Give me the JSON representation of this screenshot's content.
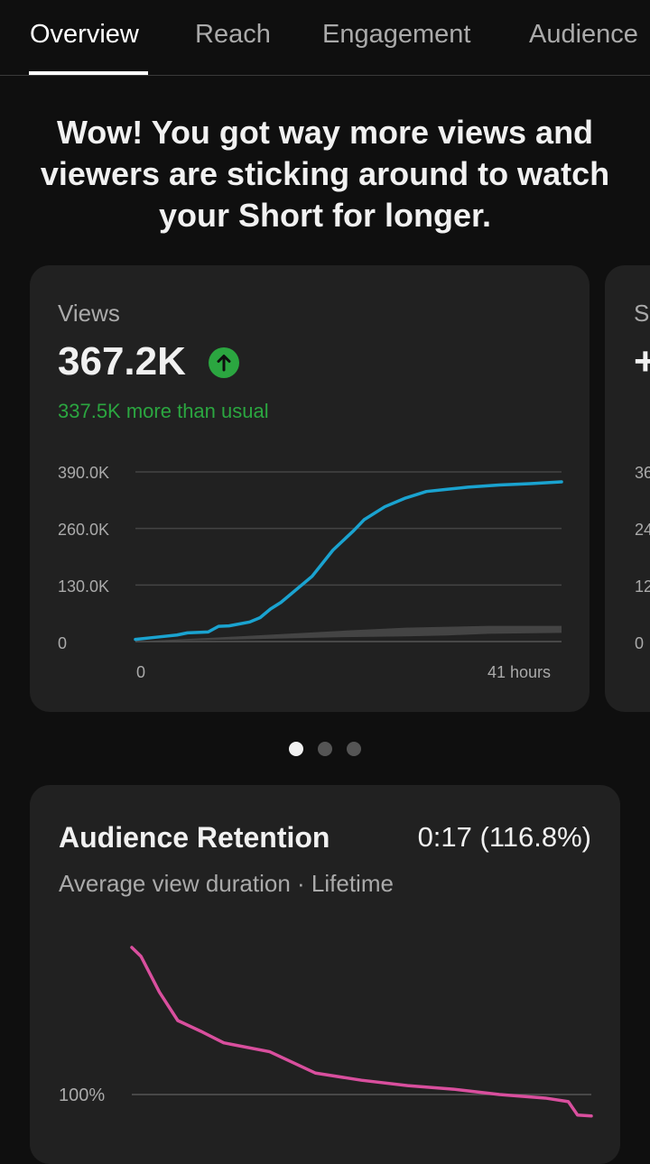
{
  "tabs": [
    {
      "label": "Overview",
      "active": true
    },
    {
      "label": "Reach",
      "active": false
    },
    {
      "label": "Engagement",
      "active": false
    },
    {
      "label": "Audience",
      "active": false
    }
  ],
  "headline": "Wow! You got way more views and viewers are sticking around to watch your Short for longer.",
  "views_card": {
    "label": "Views",
    "value": "367.2K",
    "delta_text": "337.5K more than usual",
    "up_icon": "arrow-up-icon",
    "accent_color": "#2ba640",
    "line_color": "#1aa3d0",
    "typical_range_color": "#444444"
  },
  "next_card_peek": {
    "label": "S",
    "value": "+",
    "ticks": [
      "36",
      "24",
      "12",
      "0"
    ]
  },
  "pager": {
    "count": 3,
    "active_index": 0
  },
  "retention": {
    "title": "Audience Retention",
    "value": "0:17 (116.8%)",
    "subtitle": "Average view duration · Lifetime",
    "line_color": "#d94f9e",
    "ref_label": "100%"
  },
  "chart_data": [
    {
      "type": "line",
      "title": "",
      "xlabel": "",
      "ylabel": "",
      "x_tick_labels": [
        "0",
        "41 hours"
      ],
      "y_tick_labels": [
        "390.0K",
        "260.0K",
        "130.0K",
        "0"
      ],
      "ylim": [
        0,
        390000
      ],
      "xlim": [
        0,
        41
      ],
      "grid": true,
      "series": [
        {
          "name": "",
          "x": [
            0,
            2,
            4,
            5,
            7,
            8,
            9,
            11,
            12,
            13,
            14,
            15,
            17,
            18,
            19,
            21,
            22,
            24,
            26,
            28,
            30,
            32,
            35,
            38,
            41
          ],
          "y": [
            5000,
            10000,
            15000,
            20000,
            22000,
            35000,
            36000,
            45000,
            55000,
            75000,
            90000,
            110000,
            150000,
            180000,
            210000,
            255000,
            280000,
            310000,
            330000,
            345000,
            350000,
            355000,
            360000,
            363000,
            367200
          ]
        }
      ],
      "typical_range": {
        "x": [
          0,
          10,
          20,
          26,
          30,
          34,
          41
        ],
        "low": [
          0,
          5000,
          10000,
          12000,
          14000,
          18000,
          20000
        ],
        "high": [
          0,
          12000,
          25000,
          32000,
          34000,
          36000,
          36000
        ]
      }
    },
    {
      "type": "line",
      "title": "",
      "xlabel": "",
      "ylabel": "",
      "y_tick_labels": [
        "100%"
      ],
      "series": [
        {
          "name": "",
          "x": [
            0,
            0.02,
            0.06,
            0.1,
            0.15,
            0.2,
            0.3,
            0.4,
            0.5,
            0.6,
            0.7,
            0.8,
            0.9,
            0.95,
            0.97,
            1.0
          ],
          "y": [
            265,
            255,
            215,
            183,
            171,
            158,
            148,
            124,
            116,
            110,
            106,
            100,
            96,
            92,
            77,
            76
          ]
        }
      ]
    }
  ]
}
